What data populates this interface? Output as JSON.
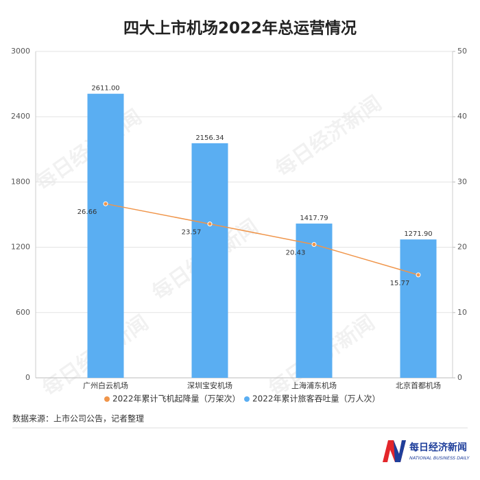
{
  "chart_data": {
    "type": "combo",
    "title": "四大上市机场2022年总运营情况",
    "categories": [
      "广州白云机场",
      "深圳宝安机场",
      "上海浦东机场",
      "北京首都机场"
    ],
    "series": [
      {
        "name": "2022年累计飞机起降量（万架次）",
        "type": "line",
        "axis": "y2",
        "color": "#f0954a",
        "values": [
          26.66,
          23.57,
          20.43,
          15.77
        ]
      },
      {
        "name": "2022年累计旅客吞吐量（万人次）",
        "type": "bar",
        "color": "#5aaef2",
        "values": [
          2611.0,
          2156.34,
          1417.79,
          1271.9
        ],
        "value_labels": [
          "2611.00",
          "2156.34",
          "1417.79",
          "1271.90"
        ]
      }
    ],
    "ylim": [
      0,
      3000
    ],
    "yticks": [
      0,
      600,
      1200,
      1800,
      2400,
      3000
    ],
    "y2lim": [
      0,
      50
    ],
    "y2ticks": [
      0,
      10,
      20,
      30,
      40,
      50
    ],
    "grid": true,
    "legend": "bottom",
    "source": "数据来源：上市公司公告，记者整理",
    "watermark": "每日经济新闻",
    "logo": {
      "name": "每日经济新闻",
      "subtitle": "NATIONAL BUSINESS DAILY"
    }
  }
}
